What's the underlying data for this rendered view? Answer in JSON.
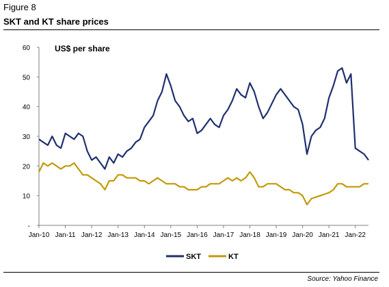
{
  "figure_label": "Figure 8",
  "title": "SKT and KT share prices",
  "source": "Source: Yahoo Finance",
  "colors": {
    "skt": "#1f2f6e",
    "kt": "#c19a06",
    "axis": "#7f7f7f"
  },
  "chart_data": {
    "type": "line",
    "title": "SKT and KT share prices",
    "unit_label": "US$ per share",
    "xlabel": "",
    "ylabel": "",
    "ylim": [
      0,
      60
    ],
    "yticks": [
      {
        "value": 0,
        "label": "-"
      },
      {
        "value": 10,
        "label": "10"
      },
      {
        "value": 20,
        "label": "20"
      },
      {
        "value": 30,
        "label": "30"
      },
      {
        "value": 40,
        "label": "40"
      },
      {
        "value": 50,
        "label": "50"
      },
      {
        "value": 60,
        "label": "60"
      }
    ],
    "x_range": [
      "2010-01",
      "2022-07"
    ],
    "xticks": [
      "Jan-10",
      "Jan-11",
      "Jan-12",
      "Jan-13",
      "Jan-14",
      "Jan-15",
      "Jan-16",
      "Jan-17",
      "Jan-18",
      "Jan-19",
      "Jan-20",
      "Jan-21",
      "Jan-22"
    ],
    "grid": false,
    "legend_position": "bottom-center",
    "series": [
      {
        "name": "SKT",
        "color": "#1f2f6e",
        "points": [
          [
            "2010-01",
            29
          ],
          [
            "2010-03",
            28
          ],
          [
            "2010-05",
            27
          ],
          [
            "2010-07",
            30
          ],
          [
            "2010-09",
            27
          ],
          [
            "2010-11",
            26
          ],
          [
            "2011-01",
            31
          ],
          [
            "2011-03",
            30
          ],
          [
            "2011-05",
            29
          ],
          [
            "2011-07",
            31
          ],
          [
            "2011-09",
            30
          ],
          [
            "2011-11",
            25
          ],
          [
            "2012-01",
            22
          ],
          [
            "2012-03",
            23
          ],
          [
            "2012-05",
            21
          ],
          [
            "2012-07",
            19
          ],
          [
            "2012-09",
            23
          ],
          [
            "2012-11",
            21
          ],
          [
            "2013-01",
            24
          ],
          [
            "2013-03",
            23
          ],
          [
            "2013-05",
            25
          ],
          [
            "2013-07",
            26
          ],
          [
            "2013-09",
            28
          ],
          [
            "2013-11",
            29
          ],
          [
            "2014-01",
            33
          ],
          [
            "2014-03",
            35
          ],
          [
            "2014-05",
            37
          ],
          [
            "2014-07",
            42
          ],
          [
            "2014-09",
            45
          ],
          [
            "2014-11",
            51
          ],
          [
            "2015-01",
            47
          ],
          [
            "2015-03",
            42
          ],
          [
            "2015-05",
            40
          ],
          [
            "2015-07",
            37
          ],
          [
            "2015-09",
            35
          ],
          [
            "2015-11",
            36
          ],
          [
            "2016-01",
            31
          ],
          [
            "2016-03",
            32
          ],
          [
            "2016-05",
            34
          ],
          [
            "2016-07",
            36
          ],
          [
            "2016-09",
            34
          ],
          [
            "2016-11",
            33
          ],
          [
            "2017-01",
            37
          ],
          [
            "2017-03",
            39
          ],
          [
            "2017-05",
            42
          ],
          [
            "2017-07",
            46
          ],
          [
            "2017-09",
            44
          ],
          [
            "2017-11",
            43
          ],
          [
            "2018-01",
            48
          ],
          [
            "2018-03",
            45
          ],
          [
            "2018-05",
            40
          ],
          [
            "2018-07",
            36
          ],
          [
            "2018-09",
            38
          ],
          [
            "2018-11",
            41
          ],
          [
            "2019-01",
            44
          ],
          [
            "2019-03",
            46
          ],
          [
            "2019-05",
            44
          ],
          [
            "2019-07",
            42
          ],
          [
            "2019-09",
            40
          ],
          [
            "2019-11",
            39
          ],
          [
            "2020-01",
            34
          ],
          [
            "2020-03",
            24
          ],
          [
            "2020-05",
            30
          ],
          [
            "2020-07",
            32
          ],
          [
            "2020-09",
            33
          ],
          [
            "2020-11",
            36
          ],
          [
            "2021-01",
            43
          ],
          [
            "2021-03",
            47
          ],
          [
            "2021-05",
            52
          ],
          [
            "2021-07",
            53
          ],
          [
            "2021-09",
            48
          ],
          [
            "2021-11",
            51
          ],
          [
            "2022-01",
            26
          ],
          [
            "2022-03",
            25
          ],
          [
            "2022-05",
            24
          ],
          [
            "2022-07",
            22
          ]
        ]
      },
      {
        "name": "KT",
        "color": "#c19a06",
        "points": [
          [
            "2010-01",
            18
          ],
          [
            "2010-03",
            21
          ],
          [
            "2010-05",
            20
          ],
          [
            "2010-07",
            21
          ],
          [
            "2010-09",
            20
          ],
          [
            "2010-11",
            19
          ],
          [
            "2011-01",
            20
          ],
          [
            "2011-03",
            20
          ],
          [
            "2011-05",
            21
          ],
          [
            "2011-07",
            19
          ],
          [
            "2011-09",
            17
          ],
          [
            "2011-11",
            17
          ],
          [
            "2012-01",
            16
          ],
          [
            "2012-03",
            15
          ],
          [
            "2012-05",
            14
          ],
          [
            "2012-07",
            12
          ],
          [
            "2012-09",
            15
          ],
          [
            "2012-11",
            15
          ],
          [
            "2013-01",
            17
          ],
          [
            "2013-03",
            17
          ],
          [
            "2013-05",
            16
          ],
          [
            "2013-07",
            16
          ],
          [
            "2013-09",
            16
          ],
          [
            "2013-11",
            15
          ],
          [
            "2014-01",
            15
          ],
          [
            "2014-03",
            14
          ],
          [
            "2014-05",
            15
          ],
          [
            "2014-07",
            16
          ],
          [
            "2014-09",
            15
          ],
          [
            "2014-11",
            14
          ],
          [
            "2015-01",
            14
          ],
          [
            "2015-03",
            14
          ],
          [
            "2015-05",
            13
          ],
          [
            "2015-07",
            13
          ],
          [
            "2015-09",
            12
          ],
          [
            "2015-11",
            12
          ],
          [
            "2016-01",
            12
          ],
          [
            "2016-03",
            13
          ],
          [
            "2016-05",
            13
          ],
          [
            "2016-07",
            14
          ],
          [
            "2016-09",
            14
          ],
          [
            "2016-11",
            14
          ],
          [
            "2017-01",
            15
          ],
          [
            "2017-03",
            16
          ],
          [
            "2017-05",
            15
          ],
          [
            "2017-07",
            16
          ],
          [
            "2017-09",
            15
          ],
          [
            "2017-11",
            16
          ],
          [
            "2018-01",
            18
          ],
          [
            "2018-03",
            16
          ],
          [
            "2018-05",
            13
          ],
          [
            "2018-07",
            13
          ],
          [
            "2018-09",
            14
          ],
          [
            "2018-11",
            14
          ],
          [
            "2019-01",
            14
          ],
          [
            "2019-03",
            13
          ],
          [
            "2019-05",
            12
          ],
          [
            "2019-07",
            12
          ],
          [
            "2019-09",
            11
          ],
          [
            "2019-11",
            11
          ],
          [
            "2020-01",
            10
          ],
          [
            "2020-03",
            7
          ],
          [
            "2020-05",
            9
          ],
          [
            "2020-07",
            9.5
          ],
          [
            "2020-09",
            10
          ],
          [
            "2020-11",
            10.5
          ],
          [
            "2021-01",
            11
          ],
          [
            "2021-03",
            12
          ],
          [
            "2021-05",
            14
          ],
          [
            "2021-07",
            14
          ],
          [
            "2021-09",
            13
          ],
          [
            "2021-11",
            13
          ],
          [
            "2022-01",
            13
          ],
          [
            "2022-03",
            13
          ],
          [
            "2022-05",
            14
          ],
          [
            "2022-07",
            14
          ]
        ]
      }
    ]
  }
}
